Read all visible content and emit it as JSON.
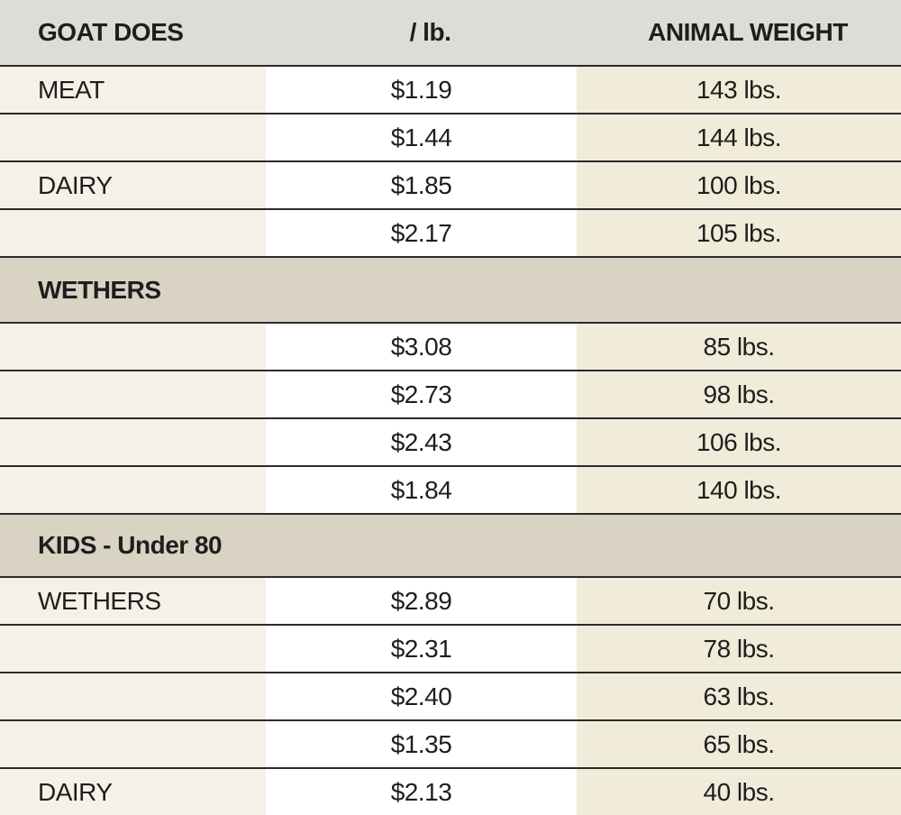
{
  "headers": {
    "col1": "GOAT DOES",
    "col2": "/ lb.",
    "col3": "ANIMAL WEIGHT"
  },
  "groups": [
    {
      "rows": [
        {
          "label": "MEAT",
          "price": "$1.19",
          "weight": "143 lbs."
        },
        {
          "label": "",
          "price": "$1.44",
          "weight": "144 lbs."
        },
        {
          "label": "DAIRY",
          "price": "$1.85",
          "weight": "100 lbs."
        },
        {
          "label": "",
          "price": "$2.17",
          "weight": "105 lbs."
        }
      ]
    },
    {
      "title": "WETHERS",
      "rows": [
        {
          "label": "",
          "price": "$3.08",
          "weight": "85 lbs."
        },
        {
          "label": "",
          "price": "$2.73",
          "weight": "98 lbs."
        },
        {
          "label": "",
          "price": "$2.43",
          "weight": "106 lbs."
        },
        {
          "label": "",
          "price": "$1.84",
          "weight": "140 lbs."
        }
      ]
    },
    {
      "title": "KIDS - Under 80",
      "rows": [
        {
          "label": "WETHERS",
          "price": "$2.89",
          "weight": "70 lbs."
        },
        {
          "label": "",
          "price": "$2.31",
          "weight": "78 lbs."
        },
        {
          "label": "",
          "price": "$2.40",
          "weight": "63 lbs."
        },
        {
          "label": "",
          "price": "$1.35",
          "weight": "65 lbs."
        },
        {
          "label": "DAIRY",
          "price": "$2.13",
          "weight": "40 lbs."
        }
      ]
    }
  ]
}
